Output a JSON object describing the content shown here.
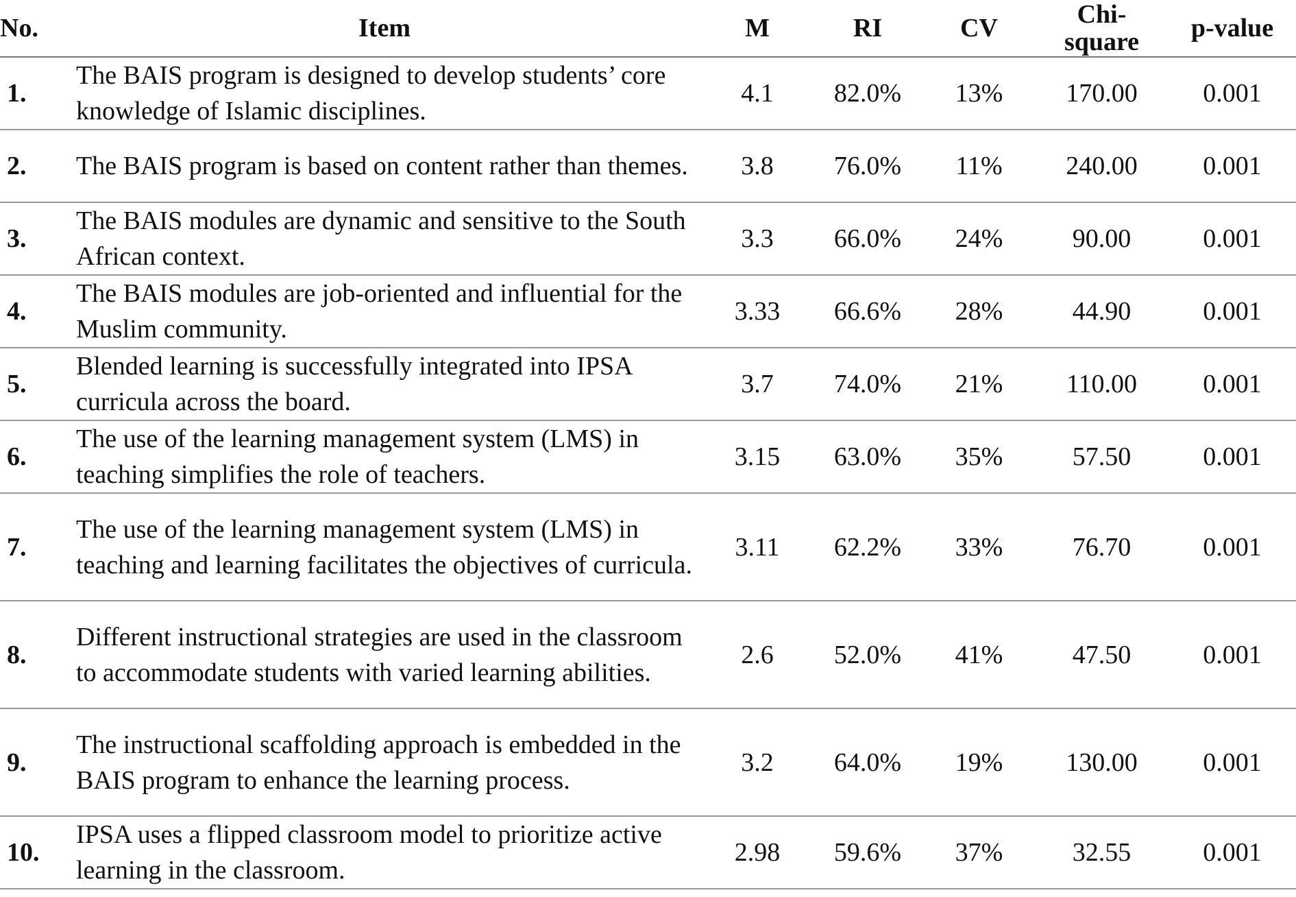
{
  "table": {
    "header": [
      "No.",
      "Item",
      "M",
      "RI",
      "CV",
      "Chi-square",
      "p-value"
    ],
    "rows": [
      [
        "1.",
        "The BAIS program is designed to develop students’ core knowledge of Islamic disciplines.",
        "4.1",
        "82.0%",
        "13%",
        "170.00",
        "0.001"
      ],
      [
        "2.",
        "The BAIS program is based on content rather than themes.",
        "3.8",
        "76.0%",
        "11%",
        "240.00",
        "0.001"
      ],
      [
        "3.",
        "The BAIS modules are dynamic and sensitive to the South African context.",
        "3.3",
        "66.0%",
        "24%",
        "90.00",
        "0.001"
      ],
      [
        "4.",
        "The BAIS modules are job-oriented and influential for the Muslim community.",
        "3.33",
        "66.6%",
        "28%",
        "44.90",
        "0.001"
      ],
      [
        "5.",
        "Blended learning is successfully integrated into IPSA curricula across the board.",
        "3.7",
        "74.0%",
        "21%",
        "110.00",
        "0.001"
      ],
      [
        "6.",
        "The use of the learning management system (LMS) in teaching simplifies the role of teachers.",
        "3.15",
        "63.0%",
        "35%",
        "57.50",
        "0.001"
      ],
      [
        "7.",
        "The use of the learning management system (LMS) in teaching and learning facilitates the objectives of curricula.",
        "3.11",
        "62.2%",
        "33%",
        "76.70",
        "0.001"
      ],
      [
        "8.",
        "Different instructional strategies are used in the classroom to accommodate students with varied learning abilities.",
        "2.6",
        "52.0%",
        "41%",
        "47.50",
        "0.001"
      ],
      [
        "9.",
        "The instructional scaffolding approach is embedded in the BAIS program to enhance the learning process.",
        "3.2",
        "64.0%",
        "19%",
        "130.00",
        "0.001"
      ],
      [
        "10.",
        "IPSA uses a flipped classroom model to prioritize active learning in the classroom.",
        "2.98",
        "59.6%",
        "37%",
        "32.55",
        "0.001"
      ]
    ]
  }
}
